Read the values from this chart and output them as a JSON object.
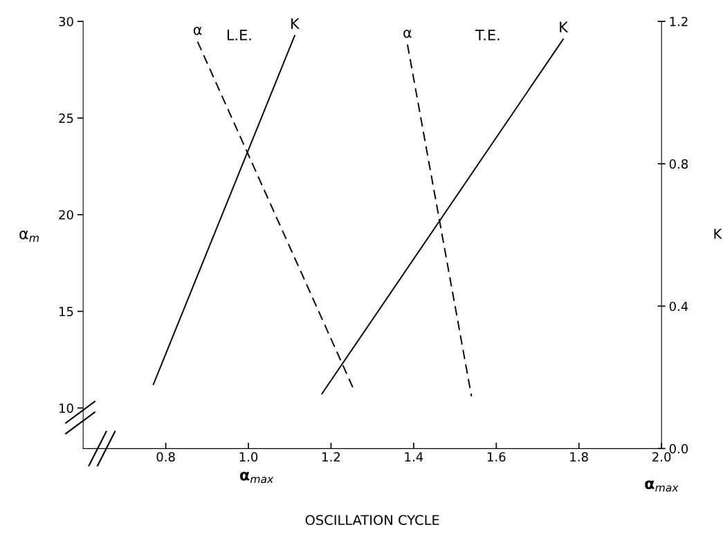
{
  "chart_data": {
    "type": "line",
    "ylabel": "α$_{m}$",
    "y2label": "K",
    "xlim": [
      0.6,
      2.0
    ],
    "xticks": [
      {
        "value": 0.8,
        "label": "0.8"
      },
      {
        "value": 1.0,
        "label": "1.0"
      },
      {
        "value": 1.2,
        "label": "1.2"
      },
      {
        "value": 1.4,
        "label": "1.4"
      },
      {
        "value": 1.6,
        "label": "1.6"
      },
      {
        "value": 1.8,
        "label": "1.8"
      },
      {
        "value": 2.0,
        "label": "2.0"
      }
    ],
    "ylim": [
      7.9,
      30
    ],
    "yticks": [
      10,
      15,
      20,
      25,
      30
    ],
    "y2lim": [
      0,
      1.2
    ],
    "y2ticks": [
      {
        "value": 0,
        "label": "0.0"
      },
      {
        "value": 0.4,
        "label": "0.4"
      },
      {
        "value": 0.8,
        "label": "0.8"
      },
      {
        "value": 1.2,
        "label": "1.2"
      }
    ],
    "grid": false,
    "legend": false,
    "marker": "none",
    "series": [
      {
        "name": "α",
        "color": "#000000",
        "line_style": "dashed",
        "x": [
          0.877,
          1.253
        ],
        "values": [
          28.95,
          11.05
        ]
      },
      {
        "name": "K",
        "color": "#000000",
        "line_style": "solid",
        "axis": "y2",
        "x": [
          0.77,
          1.112
        ],
        "values": [
          0.18,
          1.16
        ]
      },
      {
        "name": "α",
        "color": "#000000",
        "line_style": "dashed",
        "x": [
          1.385,
          1.54
        ],
        "values": [
          28.8,
          10.6
        ]
      },
      {
        "name": "K",
        "color": "#000000",
        "line_style": "solid",
        "axis": "y2",
        "x": [
          1.178,
          1.762
        ],
        "values": [
          0.154,
          1.15
        ]
      }
    ],
    "annotations": [
      "L.E.",
      "T.E.",
      "α$_{max}$",
      "α$_{max}$",
      "OSCILLATION CYCLE"
    ]
  }
}
